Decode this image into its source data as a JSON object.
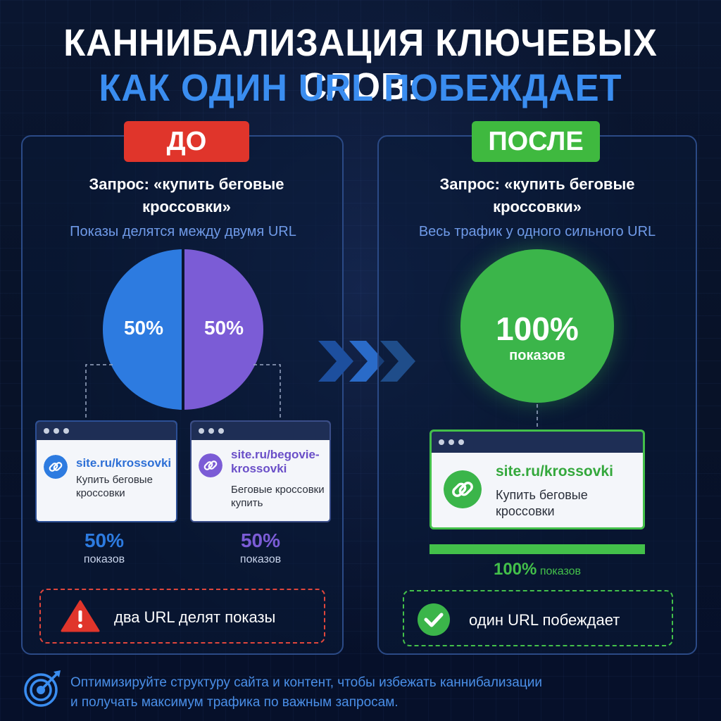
{
  "title": {
    "line1": "КАННИБАЛИЗАЦИЯ КЛЮЧЕВЫХ СЛОВ:",
    "line2": "КАК ОДИН URL ПОБЕЖДАЕТ"
  },
  "colors": {
    "accent_blue": "#3a8df0",
    "before_red": "#e0352b",
    "after_green": "#3fb93f",
    "url1_blue": "#2d7be0",
    "url2_purple": "#7b5cd6"
  },
  "before": {
    "tag": "ДО",
    "query": "Запрос: «купить беговые кроссовки»",
    "subtitle": "Показы делятся между двумя URL",
    "pie": {
      "left_label": "50%",
      "right_label": "50%",
      "left_share": 50,
      "right_share": 50
    },
    "cards": [
      {
        "url": "site.ru/krossovki",
        "desc": "Купить беговые кроссовки",
        "pct": "50%",
        "pct_sub": "показов",
        "icon": "link-icon"
      },
      {
        "url": "site.ru/begovie-krossovki",
        "desc": "Беговые кроссовки купить",
        "pct": "50%",
        "pct_sub": "показов",
        "icon": "link-icon"
      }
    ],
    "warning": {
      "icon": "warning-icon",
      "text": "два URL делят показы"
    }
  },
  "after": {
    "tag": "ПОСЛЕ",
    "query": "Запрос: «купить беговые кроссовки»",
    "subtitle": "Весь трафик у одного сильного URL",
    "circle": {
      "pct": "100%",
      "sub": "показов",
      "share": 100
    },
    "card": {
      "url": "site.ru/krossovki",
      "desc": "Купить беговые кроссовки",
      "icon": "link-icon"
    },
    "bar": {
      "pct": "100%",
      "sub": "показов",
      "fill": 1.0
    },
    "success": {
      "icon": "check-icon",
      "text": "один URL побеждает"
    }
  },
  "footer": {
    "icon": "target-icon",
    "line1": "Оптимизируйте структуру сайта и контент, чтобы избежать каннибализации",
    "line2": "и получать максимум трафика по важным запросам."
  }
}
